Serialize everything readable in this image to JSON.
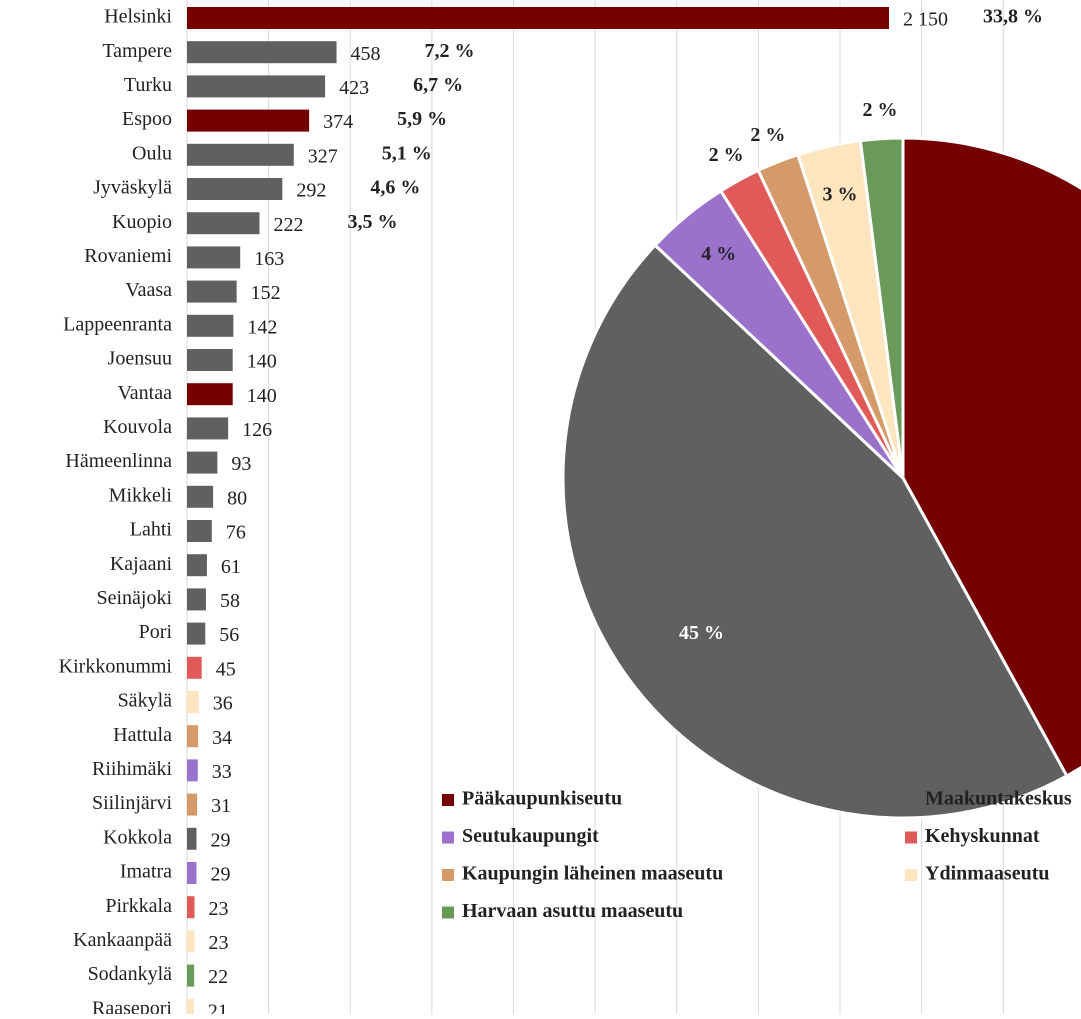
{
  "chart_data": [
    {
      "type": "barh",
      "categories": [
        "Helsinki",
        "Tampere",
        "Turku",
        "Espoo",
        "Oulu",
        "Jyväskylä",
        "Kuopio",
        "Rovaniemi",
        "Vaasa",
        "Lappeenranta",
        "Joensuu",
        "Vantaa",
        "Kouvola",
        "Hämeenlinna",
        "Mikkeli",
        "Lahti",
        "Kajaani",
        "Seinäjoki",
        "Pori",
        "Kirkkonummi",
        "Säkylä",
        "Hattula",
        "Riihimäki",
        "Siilinjärvi",
        "Kokkola",
        "Imatra",
        "Pirkkala",
        "Kankaanpää",
        "Sodankylä",
        "Raasepori"
      ],
      "values": [
        2150,
        458,
        423,
        374,
        327,
        292,
        222,
        163,
        152,
        142,
        140,
        140,
        126,
        93,
        80,
        76,
        61,
        58,
        56,
        45,
        36,
        34,
        33,
        31,
        29,
        29,
        23,
        23,
        22,
        21
      ],
      "value_labels": [
        "2 150",
        "458",
        "423",
        "374",
        "327",
        "292",
        "222",
        "163",
        "152",
        "142",
        "140",
        "140",
        "126",
        "93",
        "80",
        "76",
        "61",
        "58",
        "56",
        "45",
        "36",
        "34",
        "33",
        "31",
        "29",
        "29",
        "23",
        "23",
        "22",
        "21"
      ],
      "share_labels": [
        "33,8 %",
        "7,2 %",
        "6,7 %",
        "5,9 %",
        "5,1 %",
        "4,6 %",
        "3,5 %",
        null,
        null,
        null,
        null,
        null,
        null,
        null,
        null,
        null,
        null,
        null,
        null,
        null,
        null,
        null,
        null,
        null,
        null,
        null,
        null,
        null,
        null,
        null
      ],
      "colors": [
        "#750000",
        "#606060",
        "#606060",
        "#750000",
        "#606060",
        "#606060",
        "#606060",
        "#606060",
        "#606060",
        "#606060",
        "#606060",
        "#750000",
        "#606060",
        "#606060",
        "#606060",
        "#606060",
        "#606060",
        "#606060",
        "#606060",
        "#e05a5a",
        "#fde5bf",
        "#d49a6a",
        "#9a72cc",
        "#d49a6a",
        "#606060",
        "#9a72cc",
        "#e05a5a",
        "#fde5bf",
        "#6a9a5a",
        "#fde5bf"
      ],
      "xlim": [
        0,
        2750
      ],
      "xticks": [
        0,
        250,
        500,
        750,
        1000,
        1250,
        1500,
        1750,
        2000,
        2250,
        2500,
        2750
      ],
      "grid": true
    },
    {
      "type": "pie",
      "categories": [
        "Pääkaupunkiseutu",
        "Maakuntakeskus",
        "Seutukaupungit",
        "Kehyskunnat",
        "Kaupungin läheinen maaseutu",
        "Ydinmaaseutu",
        "Harvaan asuttu maaseutu"
      ],
      "values": [
        42,
        45,
        4,
        2,
        2,
        3,
        2
      ],
      "value_labels": [
        null,
        "45 %",
        "4 %",
        "2 %",
        "2 %",
        "3 %",
        "2 %"
      ],
      "colors": [
        "#750000",
        "#606060",
        "#9a72cc",
        "#e05a5a",
        "#d49a6a",
        "#fde5bf",
        "#6a9a5a"
      ]
    }
  ]
}
